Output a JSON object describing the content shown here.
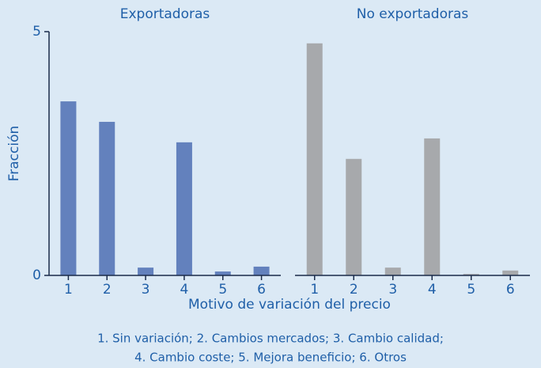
{
  "chart_data": {
    "type": "bar",
    "ylabel": "Fracción",
    "xlabel": "Motivo de variación del precio",
    "caption": [
      "1. Sin variación; 2. Cambios mercados; 3. Cambio calidad;",
      "4. Cambio coste; 5. Mejora beneficio; 6. Otros"
    ],
    "categories": [
      "1",
      "2",
      "3",
      "4",
      "5",
      "6"
    ],
    "ylim": [
      0,
      5
    ],
    "yticks": [
      0,
      5
    ],
    "series": [
      {
        "name": "Exportadoras",
        "color": "#6381bd",
        "values": [
          3.57,
          3.15,
          0.16,
          2.73,
          0.08,
          0.18
        ]
      },
      {
        "name": "No exportadoras",
        "color": "#a7a9ac",
        "values": [
          4.76,
          2.39,
          0.16,
          2.81,
          0.03,
          0.1
        ]
      }
    ]
  }
}
